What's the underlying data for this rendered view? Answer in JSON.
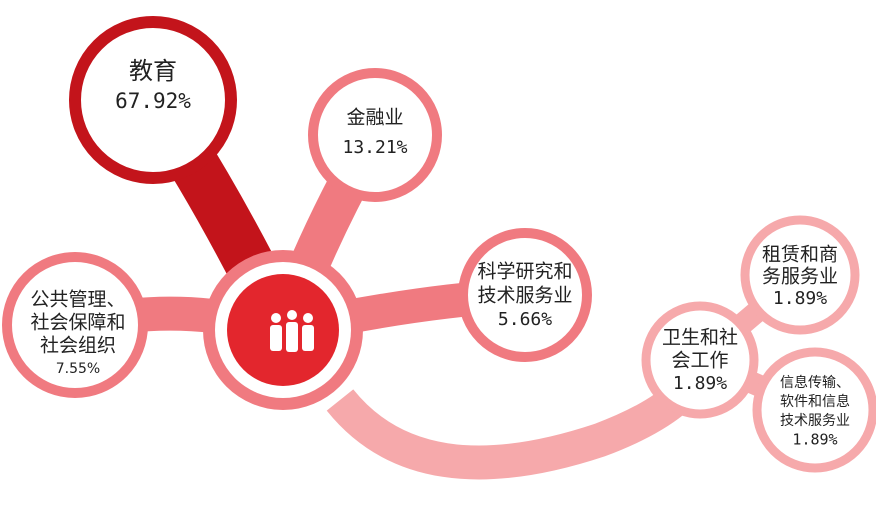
{
  "nodes": [
    {
      "lines": [
        "教育"
      ],
      "value": "67.92%"
    },
    {
      "lines": [
        "金融业"
      ],
      "value": "13.21%"
    },
    {
      "lines": [
        "科学研究和",
        "技术服务业"
      ],
      "value": "5.66%"
    },
    {
      "lines": [
        "公共管理、",
        "社会保障和",
        "社会组织"
      ],
      "value": "7.55%"
    },
    {
      "lines": [
        "卫生和社",
        "会工作"
      ],
      "value": "1.89%"
    },
    {
      "lines": [
        "租赁和商",
        "务服务业"
      ],
      "value": "1.89%"
    },
    {
      "lines": [
        "信息传输、",
        "软件和信息",
        "技术服务业"
      ],
      "value": "1.89%"
    }
  ]
}
